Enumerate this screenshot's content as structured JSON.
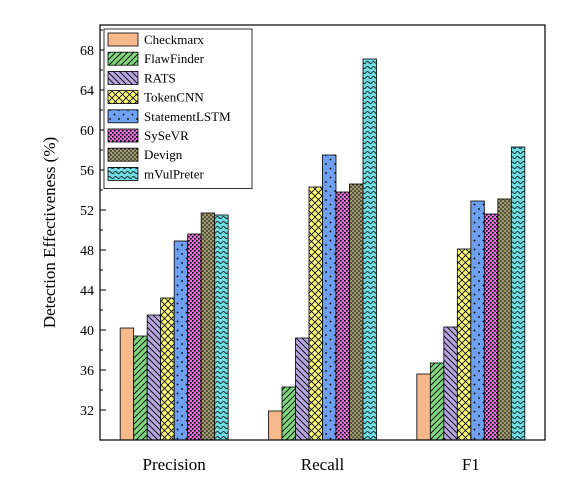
{
  "chart_data": {
    "type": "bar",
    "title": "",
    "xlabel": "",
    "ylabel": "Detection Effectiveness (%)",
    "categories": [
      "Precision",
      "Recall",
      "F1"
    ],
    "ylim": [
      29,
      70.5
    ],
    "yticks": [
      "32",
      "36",
      "40",
      "44",
      "48",
      "52",
      "56",
      "60",
      "64",
      "68"
    ],
    "legend_position": "top-left",
    "grid": false,
    "series": [
      {
        "name": "Checkmarx",
        "values": [
          40.2,
          31.9,
          35.6
        ],
        "color": "#f7b98b",
        "pattern": "none"
      },
      {
        "name": "FlawFinder",
        "values": [
          39.4,
          34.3,
          36.7
        ],
        "color": "#7fd67f",
        "pattern": "diag-right"
      },
      {
        "name": "RATS",
        "values": [
          41.5,
          39.2,
          40.3
        ],
        "color": "#b7a6e0",
        "pattern": "diag-left"
      },
      {
        "name": "TokenCNN",
        "values": [
          43.2,
          54.3,
          48.1
        ],
        "color": "#fdfd7a",
        "pattern": "diag-cross"
      },
      {
        "name": "StatementLSTM",
        "values": [
          48.9,
          57.5,
          52.9
        ],
        "color": "#6fa0f0",
        "pattern": "dots-sparse"
      },
      {
        "name": "SySeVR",
        "values": [
          49.6,
          53.8,
          51.6
        ],
        "color": "#e870e0",
        "pattern": "checker"
      },
      {
        "name": "Devign",
        "values": [
          51.7,
          54.6,
          53.1
        ],
        "color": "#9e9a70",
        "pattern": "dots-dense"
      },
      {
        "name": "mVulPreter",
        "values": [
          51.5,
          67.1,
          58.3
        ],
        "color": "#6fdbe0",
        "pattern": "waves"
      }
    ]
  }
}
